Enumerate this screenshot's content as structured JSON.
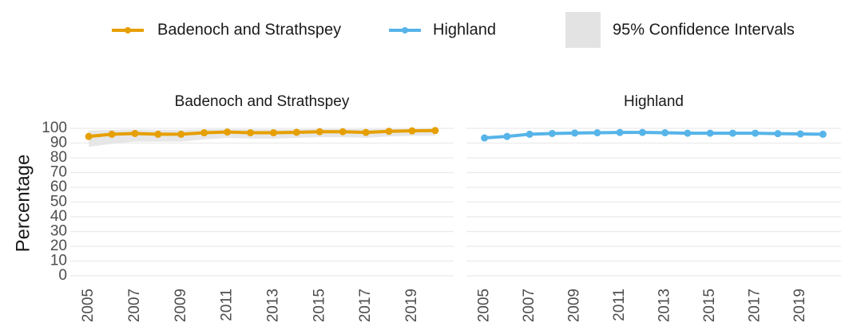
{
  "chart_data": [
    {
      "type": "line",
      "title": "Badenoch and Strathspey",
      "ylabel": "Percentage",
      "ci_label": "95% Confidence Intervals",
      "x": [
        2005,
        2006,
        2007,
        2008,
        2009,
        2010,
        2011,
        2012,
        2013,
        2014,
        2015,
        2016,
        2017,
        2018,
        2019,
        2020
      ],
      "series": [
        {
          "name": "Badenoch and Strathspey",
          "color": "#E69F00",
          "values": [
            94.5,
            96,
            96.5,
            96,
            96,
            97,
            97.5,
            97,
            97,
            97.3,
            97.7,
            97.7,
            97.2,
            98,
            98.3,
            98.5
          ],
          "ci_lower": [
            87.5,
            89.5,
            91,
            91,
            91,
            92.5,
            93.5,
            93,
            93,
            93.5,
            94,
            94,
            93.5,
            94.5,
            95,
            95
          ],
          "ci_upper": [
            98.5,
            99,
            99.2,
            99,
            99,
            99.3,
            99.5,
            99.3,
            99.3,
            99.4,
            99.5,
            99.5,
            99.4,
            99.6,
            99.7,
            99.7
          ]
        }
      ],
      "xlim": [
        2004.2,
        2020.8
      ],
      "xticks": [
        2005,
        2007,
        2009,
        2011,
        2013,
        2015,
        2017,
        2019
      ],
      "ylim": [
        -4,
        104
      ],
      "yticks": [
        0,
        10,
        20,
        30,
        40,
        50,
        60,
        70,
        80,
        90,
        100
      ],
      "grid": true
    },
    {
      "type": "line",
      "title": "Highland",
      "x": [
        2005,
        2006,
        2007,
        2008,
        2009,
        2010,
        2011,
        2012,
        2013,
        2014,
        2015,
        2016,
        2017,
        2018,
        2019,
        2020
      ],
      "series": [
        {
          "name": "Highland",
          "color": "#56B4E9",
          "values": [
            93.5,
            94.5,
            96,
            96.5,
            96.8,
            97,
            97.2,
            97.2,
            97,
            96.7,
            96.7,
            96.7,
            96.7,
            96.4,
            96.2,
            96
          ],
          "ci_lower": [
            93,
            94,
            95.6,
            96.1,
            96.4,
            96.6,
            96.8,
            96.8,
            96.6,
            96.3,
            96.3,
            96.3,
            96.3,
            96,
            95.8,
            95.6
          ],
          "ci_upper": [
            94,
            95,
            96.4,
            96.9,
            97.2,
            97.4,
            97.6,
            97.6,
            97.4,
            97.1,
            97.1,
            97.1,
            97.1,
            96.8,
            96.6,
            96.4
          ]
        }
      ],
      "xlim": [
        2004.2,
        2020.8
      ],
      "xticks": [
        2005,
        2007,
        2009,
        2011,
        2013,
        2015,
        2017,
        2019
      ],
      "ylim": [
        -4,
        104
      ],
      "yticks": [
        0,
        10,
        20,
        30,
        40,
        50,
        60,
        70,
        80,
        90,
        100
      ],
      "grid": true
    }
  ]
}
